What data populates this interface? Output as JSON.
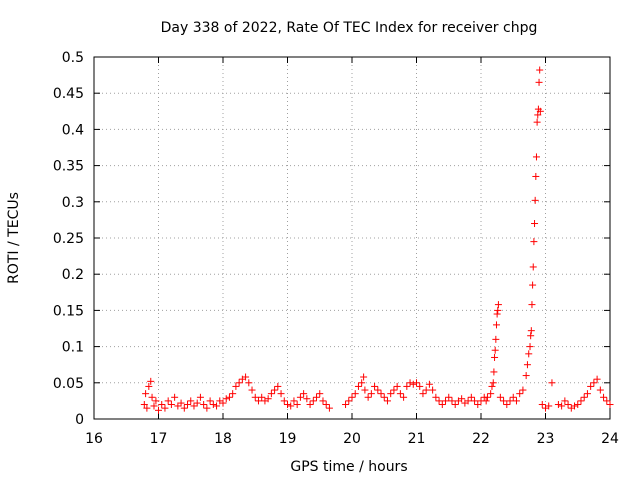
{
  "chart_data": {
    "type": "scatter",
    "title": "Day 338 of 2022, Rate Of TEC Index for receiver chpg",
    "xlabel": "GPS time / hours",
    "ylabel": "ROTI / TECUs",
    "xlim": [
      16,
      24
    ],
    "ylim": [
      0,
      0.5
    ],
    "xticks": [
      "16",
      "17",
      "18",
      "19",
      "20",
      "21",
      "22",
      "23",
      "24"
    ],
    "yticks": [
      "0",
      "0.05",
      "0.1",
      "0.15",
      "0.2",
      "0.25",
      "0.3",
      "0.35",
      "0.4",
      "0.45",
      "0.5"
    ],
    "grid": true,
    "marker": "+",
    "colors": {
      "series": "#ff0000",
      "grid": "#a0a0a0",
      "axes": "#000000"
    },
    "series": [
      {
        "points": [
          [
            16.78,
            0.02
          ],
          [
            16.8,
            0.035
          ],
          [
            16.82,
            0.015
          ],
          [
            16.85,
            0.045
          ],
          [
            16.88,
            0.052
          ],
          [
            16.9,
            0.03
          ],
          [
            16.93,
            0.018
          ],
          [
            16.96,
            0.025
          ],
          [
            17.0,
            0.012
          ],
          [
            17.05,
            0.02
          ],
          [
            17.1,
            0.015
          ],
          [
            17.15,
            0.025
          ],
          [
            17.2,
            0.02
          ],
          [
            17.25,
            0.03
          ],
          [
            17.3,
            0.018
          ],
          [
            17.35,
            0.022
          ],
          [
            17.4,
            0.015
          ],
          [
            17.45,
            0.02
          ],
          [
            17.5,
            0.025
          ],
          [
            17.55,
            0.018
          ],
          [
            17.6,
            0.022
          ],
          [
            17.65,
            0.03
          ],
          [
            17.7,
            0.02
          ],
          [
            17.75,
            0.015
          ],
          [
            17.8,
            0.025
          ],
          [
            17.85,
            0.02
          ],
          [
            17.9,
            0.018
          ],
          [
            17.95,
            0.025
          ],
          [
            18.0,
            0.022
          ],
          [
            18.05,
            0.028
          ],
          [
            18.1,
            0.03
          ],
          [
            18.15,
            0.035
          ],
          [
            18.2,
            0.045
          ],
          [
            18.25,
            0.05
          ],
          [
            18.3,
            0.055
          ],
          [
            18.35,
            0.058
          ],
          [
            18.4,
            0.05
          ],
          [
            18.45,
            0.04
          ],
          [
            18.5,
            0.03
          ],
          [
            18.55,
            0.025
          ],
          [
            18.6,
            0.03
          ],
          [
            18.65,
            0.025
          ],
          [
            18.7,
            0.028
          ],
          [
            18.75,
            0.035
          ],
          [
            18.8,
            0.04
          ],
          [
            18.85,
            0.045
          ],
          [
            18.9,
            0.035
          ],
          [
            18.95,
            0.025
          ],
          [
            19.0,
            0.02
          ],
          [
            19.05,
            0.018
          ],
          [
            19.1,
            0.025
          ],
          [
            19.15,
            0.02
          ],
          [
            19.2,
            0.03
          ],
          [
            19.25,
            0.035
          ],
          [
            19.3,
            0.028
          ],
          [
            19.35,
            0.02
          ],
          [
            19.4,
            0.025
          ],
          [
            19.45,
            0.03
          ],
          [
            19.5,
            0.035
          ],
          [
            19.55,
            0.025
          ],
          [
            19.6,
            0.02
          ],
          [
            19.65,
            0.015
          ],
          [
            19.9,
            0.02
          ],
          [
            19.95,
            0.025
          ],
          [
            20.0,
            0.03
          ],
          [
            20.05,
            0.035
          ],
          [
            20.1,
            0.045
          ],
          [
            20.15,
            0.05
          ],
          [
            20.18,
            0.058
          ],
          [
            20.2,
            0.04
          ],
          [
            20.25,
            0.03
          ],
          [
            20.3,
            0.035
          ],
          [
            20.35,
            0.045
          ],
          [
            20.4,
            0.04
          ],
          [
            20.45,
            0.035
          ],
          [
            20.5,
            0.03
          ],
          [
            20.55,
            0.025
          ],
          [
            20.6,
            0.035
          ],
          [
            20.65,
            0.04
          ],
          [
            20.7,
            0.045
          ],
          [
            20.75,
            0.035
          ],
          [
            20.8,
            0.03
          ],
          [
            20.85,
            0.045
          ],
          [
            20.9,
            0.05
          ],
          [
            20.95,
            0.048
          ],
          [
            21.0,
            0.05
          ],
          [
            21.05,
            0.045
          ],
          [
            21.1,
            0.035
          ],
          [
            21.15,
            0.04
          ],
          [
            21.2,
            0.048
          ],
          [
            21.25,
            0.04
          ],
          [
            21.3,
            0.03
          ],
          [
            21.35,
            0.025
          ],
          [
            21.4,
            0.02
          ],
          [
            21.45,
            0.025
          ],
          [
            21.5,
            0.03
          ],
          [
            21.55,
            0.025
          ],
          [
            21.6,
            0.02
          ],
          [
            21.65,
            0.025
          ],
          [
            21.7,
            0.028
          ],
          [
            21.75,
            0.022
          ],
          [
            21.8,
            0.025
          ],
          [
            21.85,
            0.03
          ],
          [
            21.9,
            0.025
          ],
          [
            21.95,
            0.02
          ],
          [
            22.0,
            0.025
          ],
          [
            22.05,
            0.03
          ],
          [
            22.08,
            0.025
          ],
          [
            22.1,
            0.03
          ],
          [
            22.15,
            0.035
          ],
          [
            22.17,
            0.045
          ],
          [
            22.19,
            0.05
          ],
          [
            22.2,
            0.065
          ],
          [
            22.21,
            0.085
          ],
          [
            22.22,
            0.095
          ],
          [
            22.23,
            0.11
          ],
          [
            22.24,
            0.13
          ],
          [
            22.25,
            0.145
          ],
          [
            22.26,
            0.15
          ],
          [
            22.27,
            0.158
          ],
          [
            22.3,
            0.03
          ],
          [
            22.35,
            0.025
          ],
          [
            22.4,
            0.02
          ],
          [
            22.45,
            0.025
          ],
          [
            22.5,
            0.03
          ],
          [
            22.55,
            0.025
          ],
          [
            22.6,
            0.035
          ],
          [
            22.65,
            0.04
          ],
          [
            22.7,
            0.06
          ],
          [
            22.72,
            0.075
          ],
          [
            22.74,
            0.09
          ],
          [
            22.76,
            0.1
          ],
          [
            22.77,
            0.115
          ],
          [
            22.78,
            0.122
          ],
          [
            22.79,
            0.158
          ],
          [
            22.8,
            0.185
          ],
          [
            22.81,
            0.21
          ],
          [
            22.82,
            0.245
          ],
          [
            22.83,
            0.27
          ],
          [
            22.84,
            0.302
          ],
          [
            22.85,
            0.335
          ],
          [
            22.86,
            0.362
          ],
          [
            22.87,
            0.41
          ],
          [
            22.88,
            0.42
          ],
          [
            22.89,
            0.428
          ],
          [
            22.9,
            0.465
          ],
          [
            22.91,
            0.482
          ],
          [
            22.92,
            0.425
          ],
          [
            22.95,
            0.02
          ],
          [
            23.0,
            0.015
          ],
          [
            23.05,
            0.018
          ],
          [
            23.1,
            0.05
          ],
          [
            23.2,
            0.02
          ],
          [
            23.25,
            0.018
          ],
          [
            23.3,
            0.025
          ],
          [
            23.35,
            0.02
          ],
          [
            23.4,
            0.015
          ],
          [
            23.45,
            0.018
          ],
          [
            23.5,
            0.02
          ],
          [
            23.55,
            0.025
          ],
          [
            23.6,
            0.03
          ],
          [
            23.65,
            0.035
          ],
          [
            23.7,
            0.045
          ],
          [
            23.75,
            0.05
          ],
          [
            23.8,
            0.055
          ],
          [
            23.85,
            0.04
          ],
          [
            23.9,
            0.03
          ],
          [
            23.95,
            0.025
          ],
          [
            24.0,
            0.02
          ]
        ]
      }
    ]
  }
}
